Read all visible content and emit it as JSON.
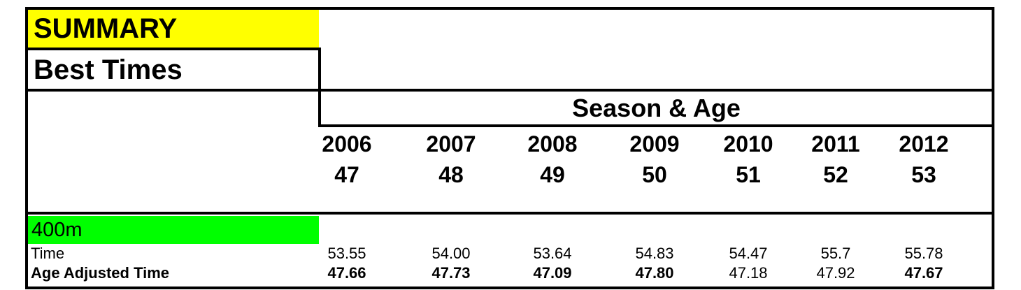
{
  "title": "SUMMARY",
  "subtitle": "Best Times",
  "column_group_header": "Season & Age",
  "columns": [
    {
      "season": "2006",
      "age": "47"
    },
    {
      "season": "2007",
      "age": "48"
    },
    {
      "season": "2008",
      "age": "49"
    },
    {
      "season": "2009",
      "age": "50"
    },
    {
      "season": "2010",
      "age": "51"
    },
    {
      "season": "2011",
      "age": "52"
    },
    {
      "season": "2012",
      "age": "53"
    }
  ],
  "event": "400m",
  "rows": [
    {
      "label": "Time",
      "label_bold": false,
      "values": [
        {
          "v": "53.55",
          "bold": false
        },
        {
          "v": "54.00",
          "bold": false
        },
        {
          "v": "53.64",
          "bold": false
        },
        {
          "v": "54.83",
          "bold": false
        },
        {
          "v": "54.47",
          "bold": false
        },
        {
          "v": "55.7",
          "bold": false
        },
        {
          "v": "55.78",
          "bold": false
        }
      ]
    },
    {
      "label": "Age Adjusted Time",
      "label_bold": true,
      "values": [
        {
          "v": "47.66",
          "bold": true
        },
        {
          "v": "47.73",
          "bold": true
        },
        {
          "v": "47.09",
          "bold": true
        },
        {
          "v": "47.80",
          "bold": true
        },
        {
          "v": "47.18",
          "bold": false
        },
        {
          "v": "47.92",
          "bold": false
        },
        {
          "v": "47.67",
          "bold": true
        }
      ]
    }
  ]
}
